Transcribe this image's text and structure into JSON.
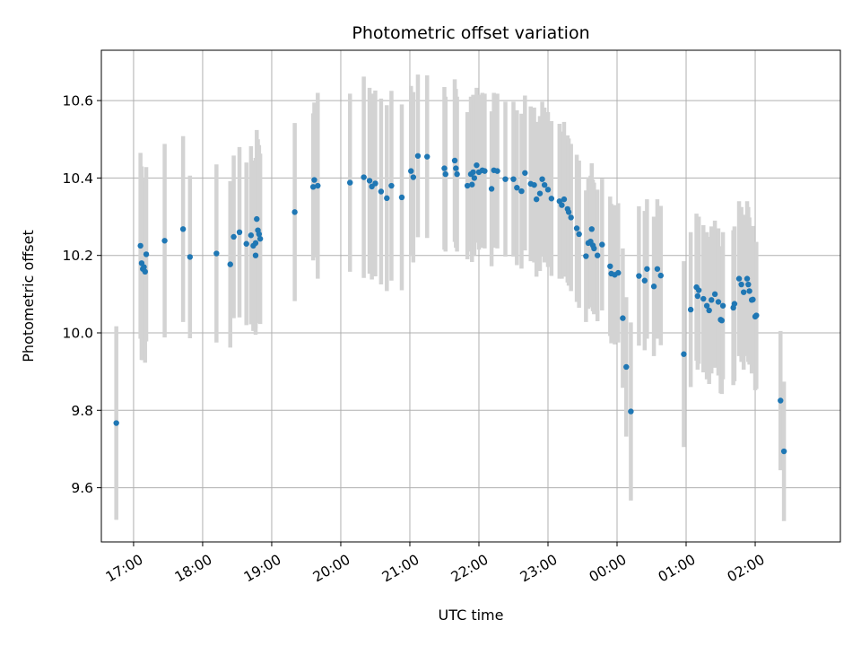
{
  "chart_data": {
    "type": "scatter",
    "title": "Photometric offset variation",
    "xlabel": "UTC time",
    "ylabel": "Photometric offset",
    "xlim": [
      "16:32",
      "03:14"
    ],
    "ylim": [
      9.46,
      10.73
    ],
    "grid": true,
    "x_ticks": [
      "17:00",
      "18:00",
      "19:00",
      "20:00",
      "21:00",
      "22:00",
      "23:00",
      "00:00",
      "01:00",
      "02:00"
    ],
    "y_ticks": [
      "9.6",
      "9.8",
      "10.0",
      "10.2",
      "10.4",
      "10.6"
    ],
    "colors": {
      "point": "#1f77b4",
      "errorbar": "#d3d3d3",
      "grid": "#b0b0b0"
    },
    "points": [
      {
        "t": "16:45",
        "y": 9.767,
        "err": 0.25
      },
      {
        "t": "17:06",
        "y": 10.225,
        "err": 0.24
      },
      {
        "t": "17:07",
        "y": 10.18,
        "err": 0.25
      },
      {
        "t": "17:08",
        "y": 10.165,
        "err": 0.235
      },
      {
        "t": "17:09",
        "y": 10.17,
        "err": 0.23
      },
      {
        "t": "17:10",
        "y": 10.158,
        "err": 0.235
      },
      {
        "t": "17:11",
        "y": 10.203,
        "err": 0.225
      },
      {
        "t": "17:27",
        "y": 10.238,
        "err": 0.25
      },
      {
        "t": "17:43",
        "y": 10.268,
        "err": 0.24
      },
      {
        "t": "17:49",
        "y": 10.196,
        "err": 0.21
      },
      {
        "t": "18:12",
        "y": 10.205,
        "err": 0.23
      },
      {
        "t": "18:24",
        "y": 10.177,
        "err": 0.215
      },
      {
        "t": "18:27",
        "y": 10.248,
        "err": 0.21
      },
      {
        "t": "18:32",
        "y": 10.26,
        "err": 0.22
      },
      {
        "t": "18:38",
        "y": 10.23,
        "err": 0.21
      },
      {
        "t": "18:42",
        "y": 10.252,
        "err": 0.23
      },
      {
        "t": "18:44",
        "y": 10.225,
        "err": 0.22
      },
      {
        "t": "18:46",
        "y": 10.2,
        "err": 0.205
      },
      {
        "t": "18:46",
        "y": 10.232,
        "err": 0.22
      },
      {
        "t": "18:47",
        "y": 10.294,
        "err": 0.23
      },
      {
        "t": "18:48",
        "y": 10.265,
        "err": 0.235
      },
      {
        "t": "18:49",
        "y": 10.255,
        "err": 0.23
      },
      {
        "t": "18:50",
        "y": 10.243,
        "err": 0.22
      },
      {
        "t": "19:20",
        "y": 10.312,
        "err": 0.23
      },
      {
        "t": "19:36",
        "y": 10.377,
        "err": 0.19
      },
      {
        "t": "19:37",
        "y": 10.395,
        "err": 0.2
      },
      {
        "t": "19:40",
        "y": 10.38,
        "err": 0.24
      },
      {
        "t": "20:08",
        "y": 10.388,
        "err": 0.23
      },
      {
        "t": "20:20",
        "y": 10.402,
        "err": 0.26
      },
      {
        "t": "20:25",
        "y": 10.393,
        "err": 0.24
      },
      {
        "t": "20:27",
        "y": 10.378,
        "err": 0.24
      },
      {
        "t": "20:30",
        "y": 10.386,
        "err": 0.24
      },
      {
        "t": "20:35",
        "y": 10.365,
        "err": 0.24
      },
      {
        "t": "20:40",
        "y": 10.348,
        "err": 0.24
      },
      {
        "t": "20:44",
        "y": 10.38,
        "err": 0.245
      },
      {
        "t": "20:53",
        "y": 10.35,
        "err": 0.24
      },
      {
        "t": "21:01",
        "y": 10.418,
        "err": 0.22
      },
      {
        "t": "21:03",
        "y": 10.402,
        "err": 0.22
      },
      {
        "t": "21:07",
        "y": 10.457,
        "err": 0.21
      },
      {
        "t": "21:15",
        "y": 10.455,
        "err": 0.21
      },
      {
        "t": "21:30",
        "y": 10.425,
        "err": 0.21
      },
      {
        "t": "21:31",
        "y": 10.41,
        "err": 0.2
      },
      {
        "t": "21:39",
        "y": 10.445,
        "err": 0.21
      },
      {
        "t": "21:40",
        "y": 10.425,
        "err": 0.205
      },
      {
        "t": "21:41",
        "y": 10.41,
        "err": 0.2
      },
      {
        "t": "21:50",
        "y": 10.38,
        "err": 0.19
      },
      {
        "t": "21:53",
        "y": 10.41,
        "err": 0.2
      },
      {
        "t": "21:54",
        "y": 10.383,
        "err": 0.2
      },
      {
        "t": "21:55",
        "y": 10.415,
        "err": 0.2
      },
      {
        "t": "21:56",
        "y": 10.4,
        "err": 0.2
      },
      {
        "t": "21:58",
        "y": 10.433,
        "err": 0.2
      },
      {
        "t": "22:00",
        "y": 10.415,
        "err": 0.2
      },
      {
        "t": "22:03",
        "y": 10.42,
        "err": 0.2
      },
      {
        "t": "22:05",
        "y": 10.418,
        "err": 0.2
      },
      {
        "t": "22:11",
        "y": 10.372,
        "err": 0.2
      },
      {
        "t": "22:13",
        "y": 10.42,
        "err": 0.2
      },
      {
        "t": "22:16",
        "y": 10.418,
        "err": 0.2
      },
      {
        "t": "22:23",
        "y": 10.397,
        "err": 0.2
      },
      {
        "t": "22:30",
        "y": 10.397,
        "err": 0.2
      },
      {
        "t": "22:33",
        "y": 10.375,
        "err": 0.2
      },
      {
        "t": "22:37",
        "y": 10.366,
        "err": 0.2
      },
      {
        "t": "22:40",
        "y": 10.413,
        "err": 0.2
      },
      {
        "t": "22:45",
        "y": 10.385,
        "err": 0.2
      },
      {
        "t": "22:48",
        "y": 10.382,
        "err": 0.2
      },
      {
        "t": "22:50",
        "y": 10.345,
        "err": 0.2
      },
      {
        "t": "22:53",
        "y": 10.36,
        "err": 0.2
      },
      {
        "t": "22:55",
        "y": 10.397,
        "err": 0.2
      },
      {
        "t": "22:57",
        "y": 10.382,
        "err": 0.2
      },
      {
        "t": "23:00",
        "y": 10.37,
        "err": 0.2
      },
      {
        "t": "23:03",
        "y": 10.347,
        "err": 0.2
      },
      {
        "t": "23:10",
        "y": 10.34,
        "err": 0.2
      },
      {
        "t": "23:12",
        "y": 10.33,
        "err": 0.19
      },
      {
        "t": "23:14",
        "y": 10.345,
        "err": 0.2
      },
      {
        "t": "23:17",
        "y": 10.32,
        "err": 0.19
      },
      {
        "t": "23:18",
        "y": 10.312,
        "err": 0.19
      },
      {
        "t": "23:20",
        "y": 10.298,
        "err": 0.19
      },
      {
        "t": "23:25",
        "y": 10.27,
        "err": 0.19
      },
      {
        "t": "23:27",
        "y": 10.255,
        "err": 0.19
      },
      {
        "t": "23:33",
        "y": 10.198,
        "err": 0.17
      },
      {
        "t": "23:35",
        "y": 10.232,
        "err": 0.17
      },
      {
        "t": "23:37",
        "y": 10.236,
        "err": 0.17
      },
      {
        "t": "23:38",
        "y": 10.268,
        "err": 0.17
      },
      {
        "t": "23:39",
        "y": 10.226,
        "err": 0.17
      },
      {
        "t": "23:40",
        "y": 10.218,
        "err": 0.17
      },
      {
        "t": "23:43",
        "y": 10.2,
        "err": 0.17
      },
      {
        "t": "23:47",
        "y": 10.228,
        "err": 0.17
      },
      {
        "t": "23:54",
        "y": 10.172,
        "err": 0.18
      },
      {
        "t": "23:55",
        "y": 10.153,
        "err": 0.18
      },
      {
        "t": "23:58",
        "y": 10.15,
        "err": 0.18
      },
      {
        "t": "00:01",
        "y": 10.155,
        "err": 0.18
      },
      {
        "t": "00:05",
        "y": 10.038,
        "err": 0.18
      },
      {
        "t": "00:08",
        "y": 9.912,
        "err": 0.18
      },
      {
        "t": "00:12",
        "y": 9.797,
        "err": 0.23
      },
      {
        "t": "00:19",
        "y": 10.147,
        "err": 0.18
      },
      {
        "t": "00:24",
        "y": 10.135,
        "err": 0.18
      },
      {
        "t": "00:26",
        "y": 10.165,
        "err": 0.18
      },
      {
        "t": "00:32",
        "y": 10.12,
        "err": 0.18
      },
      {
        "t": "00:35",
        "y": 10.165,
        "err": 0.18
      },
      {
        "t": "00:38",
        "y": 10.148,
        "err": 0.18
      },
      {
        "t": "00:58",
        "y": 9.945,
        "err": 0.24
      },
      {
        "t": "01:04",
        "y": 10.06,
        "err": 0.2
      },
      {
        "t": "01:09",
        "y": 10.118,
        "err": 0.19
      },
      {
        "t": "01:10",
        "y": 10.095,
        "err": 0.19
      },
      {
        "t": "01:11",
        "y": 10.11,
        "err": 0.19
      },
      {
        "t": "01:15",
        "y": 10.088,
        "err": 0.19
      },
      {
        "t": "01:18",
        "y": 10.07,
        "err": 0.19
      },
      {
        "t": "01:20",
        "y": 10.058,
        "err": 0.19
      },
      {
        "t": "01:22",
        "y": 10.085,
        "err": 0.19
      },
      {
        "t": "01:25",
        "y": 10.1,
        "err": 0.19
      },
      {
        "t": "01:28",
        "y": 10.08,
        "err": 0.19
      },
      {
        "t": "01:30",
        "y": 10.034,
        "err": 0.19
      },
      {
        "t": "01:31",
        "y": 10.032,
        "err": 0.19
      },
      {
        "t": "01:32",
        "y": 10.07,
        "err": 0.19
      },
      {
        "t": "01:41",
        "y": 10.065,
        "err": 0.2
      },
      {
        "t": "01:42",
        "y": 10.075,
        "err": 0.2
      },
      {
        "t": "01:46",
        "y": 10.14,
        "err": 0.2
      },
      {
        "t": "01:48",
        "y": 10.125,
        "err": 0.2
      },
      {
        "t": "01:50",
        "y": 10.105,
        "err": 0.2
      },
      {
        "t": "01:53",
        "y": 10.14,
        "err": 0.2
      },
      {
        "t": "01:54",
        "y": 10.125,
        "err": 0.2
      },
      {
        "t": "01:55",
        "y": 10.108,
        "err": 0.19
      },
      {
        "t": "01:57",
        "y": 10.085,
        "err": 0.19
      },
      {
        "t": "01:58",
        "y": 10.086,
        "err": 0.19
      },
      {
        "t": "02:00",
        "y": 10.042,
        "err": 0.19
      },
      {
        "t": "02:01",
        "y": 10.045,
        "err": 0.19
      },
      {
        "t": "02:22",
        "y": 9.825,
        "err": 0.18
      },
      {
        "t": "02:25",
        "y": 9.694,
        "err": 0.18
      }
    ]
  }
}
